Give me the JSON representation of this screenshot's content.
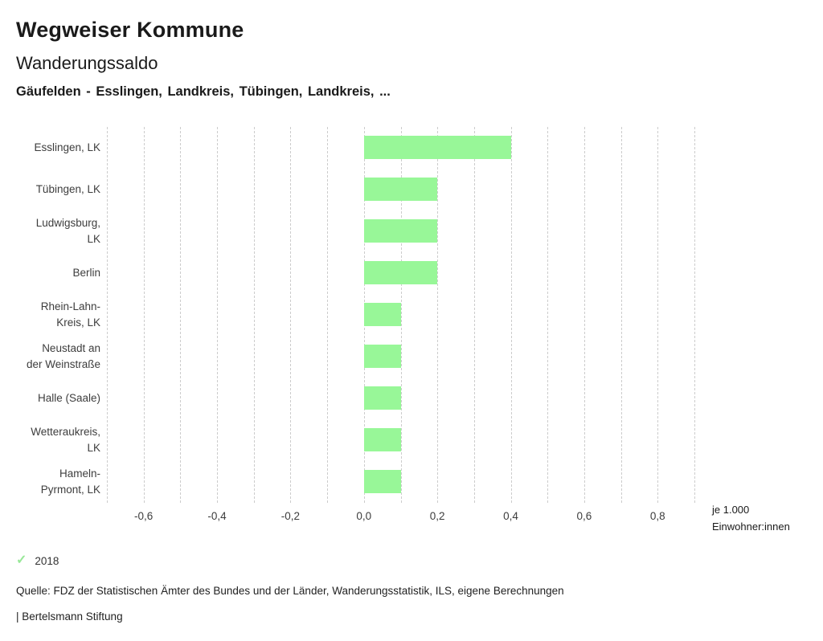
{
  "header": {
    "app_title": "Wegweiser Kommune",
    "chart_title": "Wanderungssaldo",
    "selection": "Gäufelden - Esslingen, Landkreis, Tübingen, Landkreis, ..."
  },
  "chart_data": {
    "type": "bar",
    "orientation": "horizontal",
    "title": "Wanderungssaldo",
    "categories": [
      "Esslingen, LK",
      "Tübingen, LK",
      "Ludwigsburg, LK",
      "Berlin",
      "Rhein-Lahn-Kreis, LK",
      "Neustadt an der Weinstraße",
      "Halle (Saale)",
      "Wetteraukreis, LK",
      "Hameln-Pyrmont, LK"
    ],
    "category_label_lines": [
      [
        "Esslingen, LK"
      ],
      [
        "Tübingen, LK"
      ],
      [
        "Ludwigsburg,",
        "LK"
      ],
      [
        "Berlin"
      ],
      [
        "Rhein-Lahn-",
        "Kreis, LK"
      ],
      [
        "Neustadt an",
        "der Weinstraße"
      ],
      [
        "Halle (Saale)"
      ],
      [
        "Wetteraukreis,",
        "LK"
      ],
      [
        "Hameln-",
        "Pyrmont, LK"
      ]
    ],
    "series": [
      {
        "name": "2018",
        "values": [
          0.4,
          0.2,
          0.2,
          0.2,
          0.1,
          0.1,
          0.1,
          0.1,
          0.1
        ],
        "color": "#98f798"
      }
    ],
    "xlim": [
      -0.7,
      0.9
    ],
    "gridline_step": 0.1,
    "grid": true,
    "x_ticks": [
      {
        "value": -0.6,
        "label": "-0,6"
      },
      {
        "value": -0.4,
        "label": "-0,4"
      },
      {
        "value": -0.2,
        "label": "-0,2"
      },
      {
        "value": 0.0,
        "label": "0,0"
      },
      {
        "value": 0.2,
        "label": "0,2"
      },
      {
        "value": 0.4,
        "label": "0,4"
      },
      {
        "value": 0.6,
        "label": "0,6"
      },
      {
        "value": 0.8,
        "label": "0,8"
      }
    ],
    "unit_label_line1": "je 1.000",
    "unit_label_line2": "Einwohner:innen",
    "legend_position": "bottom-left"
  },
  "legend": {
    "items": [
      {
        "label": "2018",
        "checked": true,
        "check_icon": "✓",
        "check_color": "#98e898"
      }
    ]
  },
  "footer": {
    "source": "Quelle: FDZ der Statistischen Ämter des Bundes und der Länder, Wanderungsstatistik, ILS, eigene Berechnungen",
    "branding": "| Bertelsmann Stiftung"
  },
  "colors": {
    "bar": "#98f798",
    "gridline": "#cccccc"
  }
}
